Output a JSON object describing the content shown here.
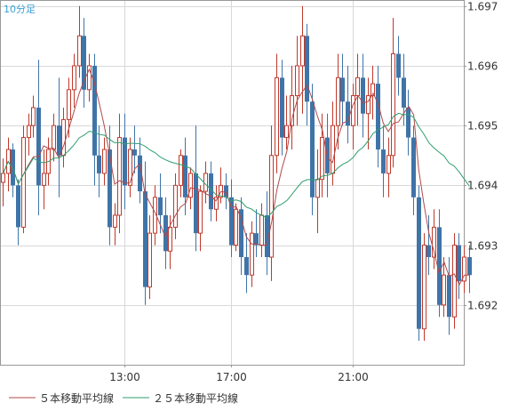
{
  "chart_data": {
    "type": "candlestick",
    "title": "10分足",
    "x_ticks": [
      "13:00",
      "17:00",
      "21:00"
    ],
    "y_ticks": [
      "1.697",
      "1.696",
      "1.695",
      "1.694",
      "1.693",
      "1.692"
    ],
    "y_tick_values": [
      1.697,
      1.696,
      1.695,
      1.694,
      1.693,
      1.692
    ],
    "ylim": [
      1.691,
      1.6971
    ],
    "candles": [
      [
        1.69405,
        1.69445,
        1.69365,
        1.6942
      ],
      [
        1.6942,
        1.6948,
        1.6939,
        1.6946
      ],
      [
        1.6946,
        1.6947,
        1.6938,
        1.694
      ],
      [
        1.694,
        1.6941,
        1.693,
        1.6933
      ],
      [
        1.6933,
        1.695,
        1.6932,
        1.6948
      ],
      [
        1.6948,
        1.6952,
        1.6945,
        1.695
      ],
      [
        1.695,
        1.6955,
        1.6948,
        1.6953
      ],
      [
        1.6953,
        1.6961,
        1.6935,
        1.694
      ],
      [
        1.694,
        1.6946,
        1.6936,
        1.6942
      ],
      [
        1.6942,
        1.6948,
        1.694,
        1.6946
      ],
      [
        1.6946,
        1.6952,
        1.6944,
        1.695
      ],
      [
        1.695,
        1.6958,
        1.6938,
        1.6945
      ],
      [
        1.6945,
        1.6953,
        1.6943,
        1.6951
      ],
      [
        1.6951,
        1.6958,
        1.6948,
        1.6956
      ],
      [
        1.6956,
        1.6962,
        1.6953,
        1.696
      ],
      [
        1.696,
        1.697,
        1.6958,
        1.6965
      ],
      [
        1.6965,
        1.6968,
        1.6953,
        1.6956
      ],
      [
        1.6956,
        1.6962,
        1.6954,
        1.696
      ],
      [
        1.696,
        1.6962,
        1.694,
        1.6945
      ],
      [
        1.6945,
        1.695,
        1.6938,
        1.6942
      ],
      [
        1.6942,
        1.6948,
        1.694,
        1.6946
      ],
      [
        1.6946,
        1.695,
        1.693,
        1.6933
      ],
      [
        1.6933,
        1.6937,
        1.693,
        1.6935
      ],
      [
        1.6935,
        1.6952,
        1.6932,
        1.6948
      ],
      [
        1.6948,
        1.6952,
        1.6936,
        1.694
      ],
      [
        1.694,
        1.6948,
        1.6938,
        1.6946
      ],
      [
        1.6946,
        1.695,
        1.6942,
        1.6945
      ],
      [
        1.6945,
        1.6948,
        1.6937,
        1.6939
      ],
      [
        1.6939,
        1.6944,
        1.692,
        1.6923
      ],
      [
        1.6923,
        1.6935,
        1.6921,
        1.6932
      ],
      [
        1.6932,
        1.694,
        1.693,
        1.6938
      ],
      [
        1.6938,
        1.6942,
        1.6932,
        1.6935
      ],
      [
        1.6935,
        1.6938,
        1.6926,
        1.6929
      ],
      [
        1.6929,
        1.6935,
        1.6926,
        1.6933
      ],
      [
        1.6933,
        1.6942,
        1.6931,
        1.694
      ],
      [
        1.694,
        1.6946,
        1.6938,
        1.6945
      ],
      [
        1.6945,
        1.6948,
        1.6935,
        1.6938
      ],
      [
        1.6938,
        1.6943,
        1.6936,
        1.6942
      ],
      [
        1.6942,
        1.695,
        1.6929,
        1.6932
      ],
      [
        1.6932,
        1.694,
        1.6929,
        1.6939
      ],
      [
        1.6939,
        1.6944,
        1.6937,
        1.6942
      ],
      [
        1.6942,
        1.6944,
        1.6934,
        1.6936
      ],
      [
        1.6936,
        1.694,
        1.6934,
        1.6938
      ],
      [
        1.6938,
        1.6943,
        1.6937,
        1.694
      ],
      [
        1.694,
        1.6942,
        1.6936,
        1.6938
      ],
      [
        1.6938,
        1.6941,
        1.6928,
        1.693
      ],
      [
        1.693,
        1.6937,
        1.6929,
        1.6936
      ],
      [
        1.6936,
        1.6938,
        1.6925,
        1.6928
      ],
      [
        1.6928,
        1.6932,
        1.6922,
        1.6925
      ],
      [
        1.6925,
        1.6934,
        1.6923,
        1.6932
      ],
      [
        1.6932,
        1.6936,
        1.6928,
        1.693
      ],
      [
        1.693,
        1.6937,
        1.6928,
        1.6935
      ],
      [
        1.6935,
        1.6939,
        1.6925,
        1.6928
      ],
      [
        1.6928,
        1.695,
        1.6924,
        1.6945
      ],
      [
        1.6945,
        1.6962,
        1.6942,
        1.6958
      ],
      [
        1.6958,
        1.6961,
        1.6945,
        1.6948
      ],
      [
        1.6948,
        1.6955,
        1.6946,
        1.695
      ],
      [
        1.695,
        1.696,
        1.6946,
        1.6955
      ],
      [
        1.6955,
        1.6965,
        1.695,
        1.696
      ],
      [
        1.696,
        1.697,
        1.6952,
        1.6965
      ],
      [
        1.6965,
        1.6967,
        1.695,
        1.6954
      ],
      [
        1.6954,
        1.6957,
        1.6935,
        1.6938
      ],
      [
        1.6938,
        1.6946,
        1.6932,
        1.6941
      ],
      [
        1.6941,
        1.6952,
        1.6938,
        1.6948
      ],
      [
        1.6948,
        1.6952,
        1.6938,
        1.6942
      ],
      [
        1.6942,
        1.6954,
        1.694,
        1.695
      ],
      [
        1.695,
        1.6962,
        1.6946,
        1.6958
      ],
      [
        1.6958,
        1.6962,
        1.695,
        1.6954
      ],
      [
        1.6954,
        1.696,
        1.6947,
        1.695
      ],
      [
        1.695,
        1.6957,
        1.6946,
        1.6955
      ],
      [
        1.6955,
        1.6962,
        1.695,
        1.6958
      ],
      [
        1.6958,
        1.6962,
        1.6948,
        1.6952
      ],
      [
        1.6952,
        1.6958,
        1.6946,
        1.6955
      ],
      [
        1.6955,
        1.696,
        1.6951,
        1.6957
      ],
      [
        1.6957,
        1.696,
        1.6943,
        1.6946
      ],
      [
        1.6946,
        1.695,
        1.6938,
        1.6942
      ],
      [
        1.6942,
        1.6948,
        1.6938,
        1.6945
      ],
      [
        1.6945,
        1.6968,
        1.6943,
        1.6962
      ],
      [
        1.6962,
        1.6965,
        1.6955,
        1.6958
      ],
      [
        1.6958,
        1.6962,
        1.695,
        1.6953
      ],
      [
        1.6953,
        1.6956,
        1.6945,
        1.6948
      ],
      [
        1.6948,
        1.695,
        1.6935,
        1.6938
      ],
      [
        1.6938,
        1.694,
        1.6914,
        1.6916
      ],
      [
        1.6916,
        1.6932,
        1.6914,
        1.693
      ],
      [
        1.693,
        1.6935,
        1.6925,
        1.6928
      ],
      [
        1.6928,
        1.6936,
        1.6926,
        1.6933
      ],
      [
        1.6933,
        1.6936,
        1.6918,
        1.692
      ],
      [
        1.692,
        1.6928,
        1.6918,
        1.6925
      ],
      [
        1.6925,
        1.6928,
        1.6915,
        1.6918
      ],
      [
        1.6918,
        1.6932,
        1.6916,
        1.693
      ],
      [
        1.693,
        1.6932,
        1.6921,
        1.6924
      ],
      [
        1.6924,
        1.693,
        1.6922,
        1.6928
      ],
      [
        1.6928,
        1.693,
        1.6922,
        1.6925
      ]
    ],
    "series": [
      {
        "name": "５本移動平均線",
        "color": "#b04a4a"
      },
      {
        "name": "２５本移動平均線",
        "color": "#2f9e6e"
      }
    ],
    "colors": {
      "up": "#c0392b",
      "down": "#3f74a8",
      "grid": "#d8d8d8",
      "axis": "#999999"
    }
  }
}
